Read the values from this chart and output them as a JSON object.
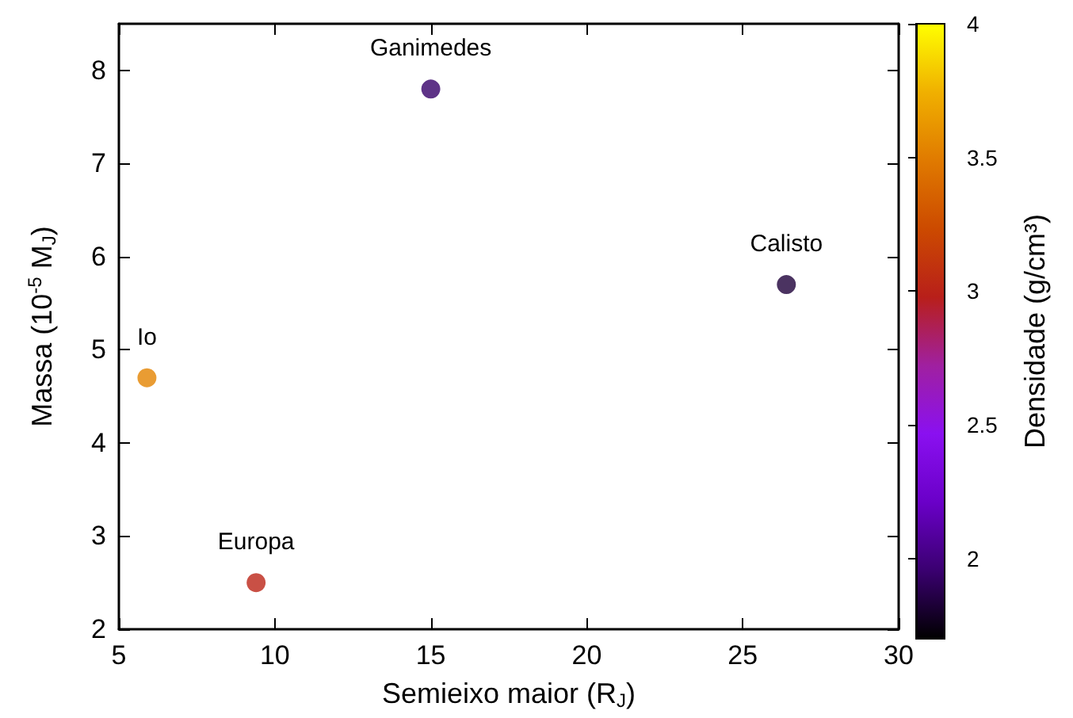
{
  "chart_data": {
    "type": "scatter",
    "xlabel": "Semieixo maior (R$_{J}$)",
    "ylabel": "Massa (10$^{-5}$ M$_{J}$)",
    "clabel": "Densidade (g/cm³)",
    "x": [
      5.9,
      9.4,
      15.0,
      26.4
    ],
    "values": [
      4.7,
      2.5,
      7.8,
      5.7
    ],
    "cvalues": [
      3.53,
      3.01,
      1.94,
      1.83
    ],
    "clim": [
      1.7,
      4
    ],
    "cticks": [
      2,
      2.5,
      3,
      3.5,
      4
    ],
    "xlim": [
      5,
      30
    ],
    "xticks": [
      5,
      10,
      15,
      20,
      25,
      30
    ],
    "ylim": [
      2,
      8.5
    ],
    "yticks": [
      2,
      3,
      4,
      5,
      6,
      7,
      8
    ],
    "marker": "circle",
    "annotations": [
      {
        "text": "Io",
        "x": 5.9,
        "y": 4.7
      },
      {
        "text": "Europa",
        "x": 9.4,
        "y": 2.5
      },
      {
        "text": "Ganimedes",
        "x": 15.0,
        "y": 7.8
      },
      {
        "text": "Calisto",
        "x": 26.4,
        "y": 5.7
      }
    ]
  }
}
